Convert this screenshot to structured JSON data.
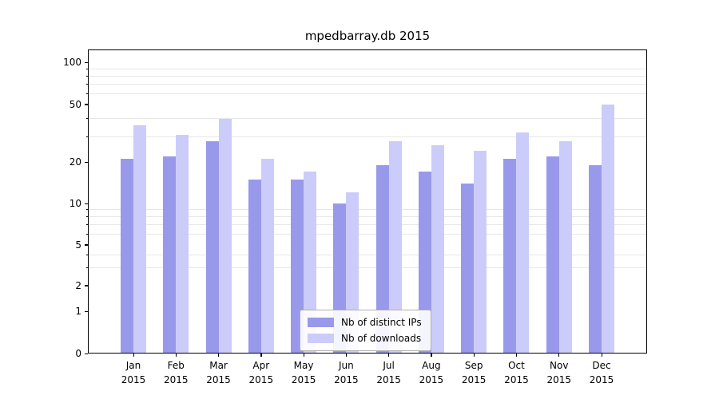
{
  "chart_data": {
    "type": "bar",
    "title": "mpedbarray.db 2015",
    "categories": [
      "Jan",
      "Feb",
      "Mar",
      "Apr",
      "May",
      "Jun",
      "Jul",
      "Aug",
      "Sep",
      "Oct",
      "Nov",
      "Dec"
    ],
    "category_year": "2015",
    "series": [
      {
        "name": "Nb of distinct IPs",
        "color": "#9999ec",
        "values": [
          21,
          22,
          28,
          15,
          15,
          10,
          19,
          17,
          14,
          21,
          22,
          19
        ]
      },
      {
        "name": "Nb of downloads",
        "color": "#ccccfa",
        "values": [
          36,
          31,
          40,
          21,
          17,
          12,
          28,
          26,
          24,
          32,
          28,
          50
        ]
      }
    ],
    "yscale": "symlog",
    "yticks": [
      0,
      1,
      2,
      5,
      10,
      20,
      50,
      100
    ],
    "minor_gridlines": [
      3,
      4,
      6,
      7,
      8,
      9,
      30,
      40,
      60,
      70,
      80,
      90
    ],
    "grid": true,
    "ylim": [
      0,
      130
    ],
    "legend_position": "lower center",
    "colors": {
      "grid": "#e7e7e7",
      "spine": "#000000",
      "background": "#ffffff"
    }
  }
}
